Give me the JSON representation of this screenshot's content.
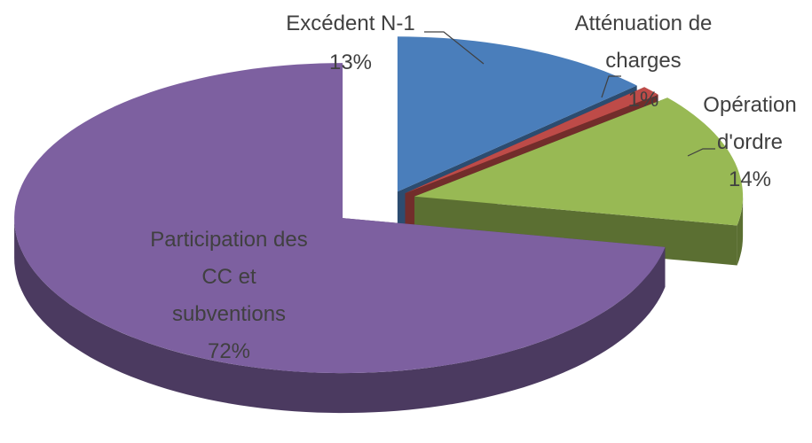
{
  "chart_data": {
    "type": "pie",
    "categories": [
      "Excédent N-1",
      "Atténuation de charges",
      "Opération d'ordre",
      "Participation des CC et subventions"
    ],
    "values": [
      13,
      1,
      14,
      72
    ],
    "value_labels": [
      "13%",
      "1%",
      "14%",
      "72%"
    ],
    "colors": [
      "#4a7ebb",
      "#be4b48",
      "#98b954",
      "#7d60a0"
    ]
  }
}
